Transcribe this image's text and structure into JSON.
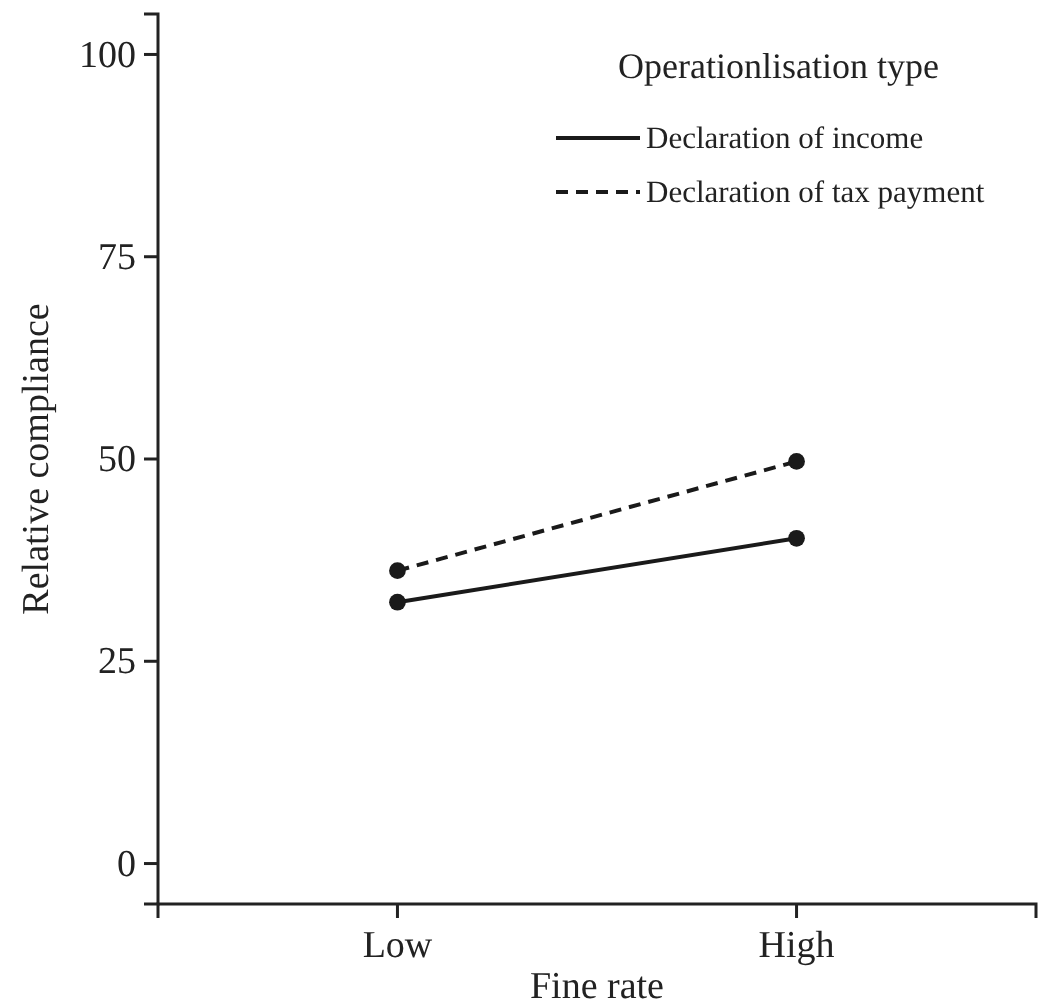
{
  "chart_data": {
    "type": "line",
    "xlabel": "Fine rate",
    "ylabel": "Relative compliance",
    "legend_title": "Operationlisation type",
    "categories": [
      "Low",
      "High"
    ],
    "series": [
      {
        "name": "Declaration of income",
        "color": "#1a1a1a",
        "values": [
          32.3,
          40.2
        ],
        "line_style": "solid"
      },
      {
        "name": "Declaration of tax payment",
        "color": "#1a1a1a",
        "values": [
          36.2,
          49.7
        ],
        "line_style": "dashed"
      }
    ],
    "ylim": [
      -5,
      105
    ],
    "yticks": [
      0,
      25,
      50,
      75,
      100
    ],
    "marker": "circle",
    "legend": "top right",
    "grid": false
  }
}
